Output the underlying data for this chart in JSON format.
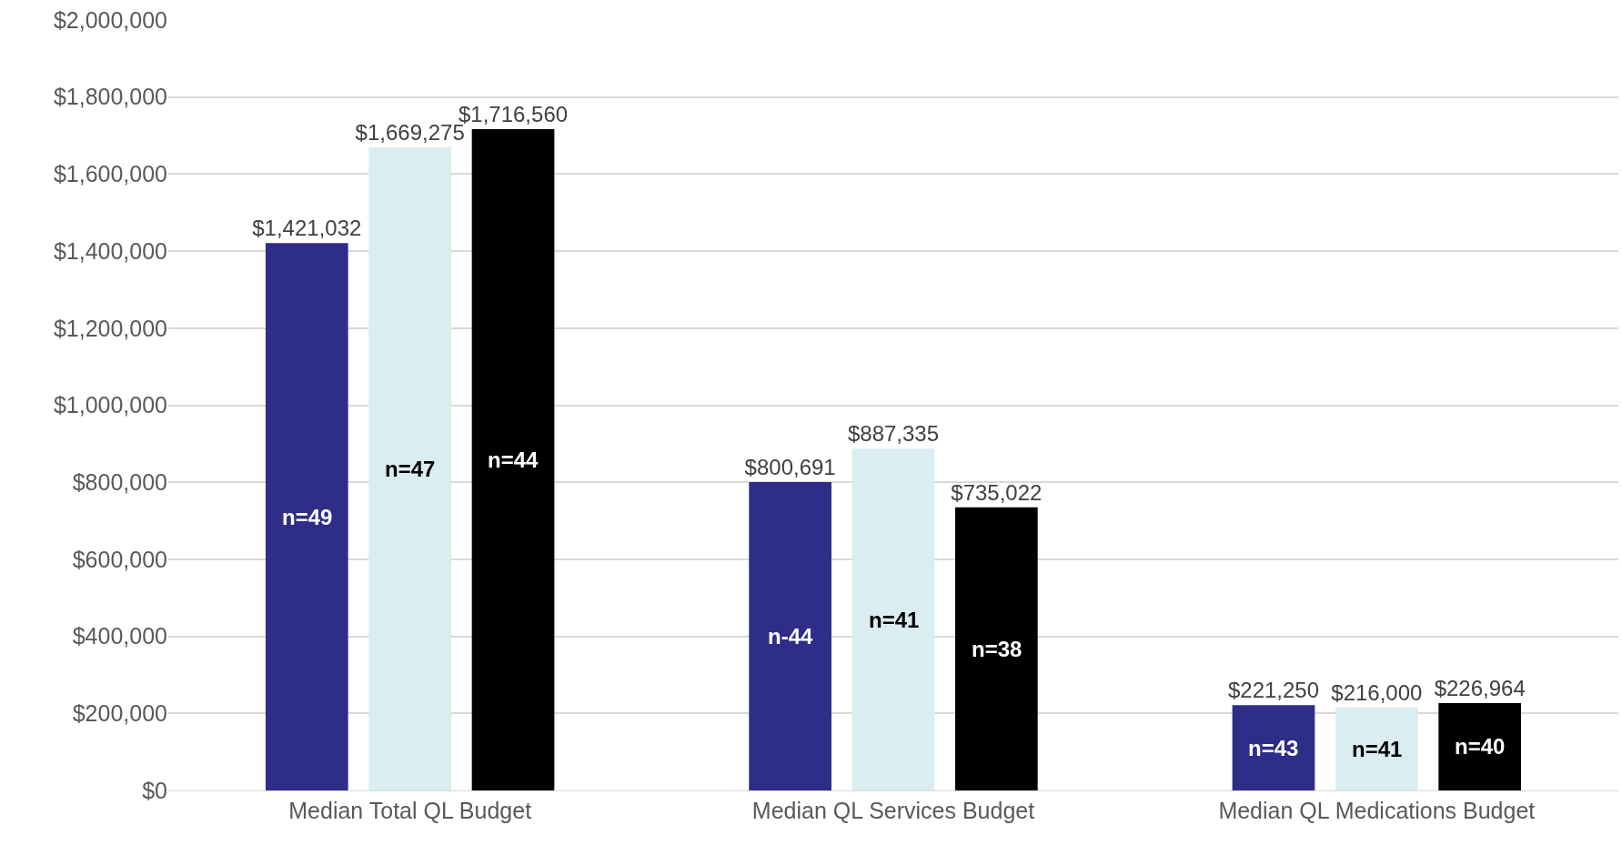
{
  "chart_data": {
    "type": "bar",
    "categories": [
      "Median Total QL Budget",
      "Median QL Services Budget",
      "Median QL Medications Budget"
    ],
    "series": [
      {
        "color": "#2e2d88",
        "values": [
          1421032,
          800691,
          221250
        ],
        "value_labels": [
          "$1,421,032",
          "$800,691",
          "$221,250"
        ]
      },
      {
        "color": "#daedf0",
        "values": [
          1669275,
          887335,
          216000
        ],
        "value_labels": [
          "$1,669,275",
          "$887,335",
          "$216,000"
        ]
      },
      {
        "color": "#000000",
        "values": [
          1716560,
          735022,
          226964
        ],
        "value_labels": [
          "$1,716,560",
          "$735,022",
          "$226,964"
        ]
      }
    ],
    "ylim": [
      0,
      2000000
    ],
    "yticks": [
      {
        "value": 0,
        "label": "$0"
      },
      {
        "value": 200000,
        "label": "$200,000"
      },
      {
        "value": 400000,
        "label": "$400,000"
      },
      {
        "value": 600000,
        "label": "$600,000"
      },
      {
        "value": 800000,
        "label": "$800,000"
      },
      {
        "value": 1000000,
        "label": "$1,000,000"
      },
      {
        "value": 1200000,
        "label": "$1,200,000"
      },
      {
        "value": 1400000,
        "label": "$1,400,000"
      },
      {
        "value": 1600000,
        "label": "$1,600,000"
      },
      {
        "value": 1800000,
        "label": "$1,800,000"
      },
      {
        "value": 2000000,
        "label": "$2,000,000"
      }
    ],
    "grid": "y",
    "annotations": [
      "n=49",
      "n=47",
      "n=44",
      "n-44",
      "n=41",
      "n=38",
      "n=43",
      "n=41",
      "n=40"
    ]
  }
}
